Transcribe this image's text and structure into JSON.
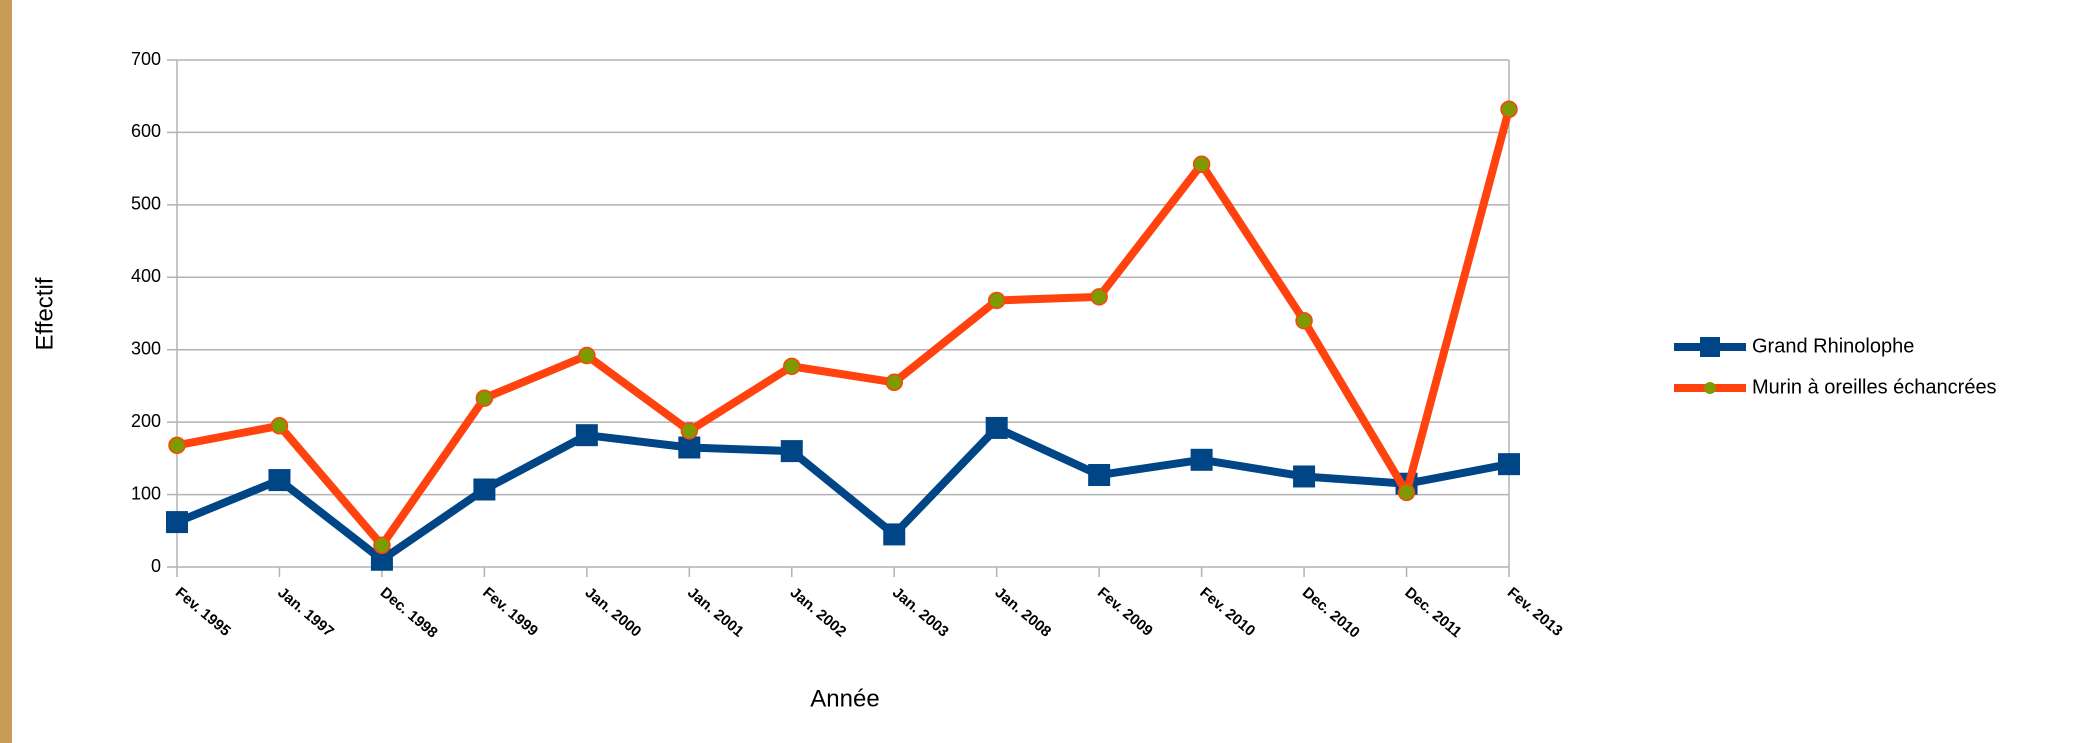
{
  "chart_data": {
    "type": "line",
    "x_label": "Année",
    "y_label": "Effectif",
    "categories": [
      "Fev. 1995",
      "Jan. 1997",
      "Dec. 1998",
      "Fev. 1999",
      "Jan. 2000",
      "Jan. 2001",
      "Jan. 2002",
      "Jan. 2003",
      "Jan. 2008",
      "Fev. 2009",
      "Fev. 2010",
      "Dec. 2010",
      "Dec. 2011",
      "Fev. 2013"
    ],
    "series": [
      {
        "name": "Grand Rhinolophe",
        "color": "#004586",
        "marker": "square",
        "marker_color": "#004586",
        "values": [
          62,
          120,
          10,
          107,
          182,
          165,
          160,
          45,
          192,
          127,
          148,
          125,
          115,
          142
        ]
      },
      {
        "name": "Murin à oreilles échancrées",
        "color": "#ff420e",
        "marker": "circle",
        "marker_color": "#7e9a00",
        "values": [
          168,
          195,
          30,
          233,
          292,
          188,
          277,
          255,
          368,
          373,
          556,
          340,
          103,
          632
        ]
      }
    ],
    "ylim": [
      0,
      700
    ],
    "yticks": [
      0,
      100,
      200,
      300,
      400,
      500,
      600,
      700
    ],
    "grid": true,
    "legend": "right"
  }
}
